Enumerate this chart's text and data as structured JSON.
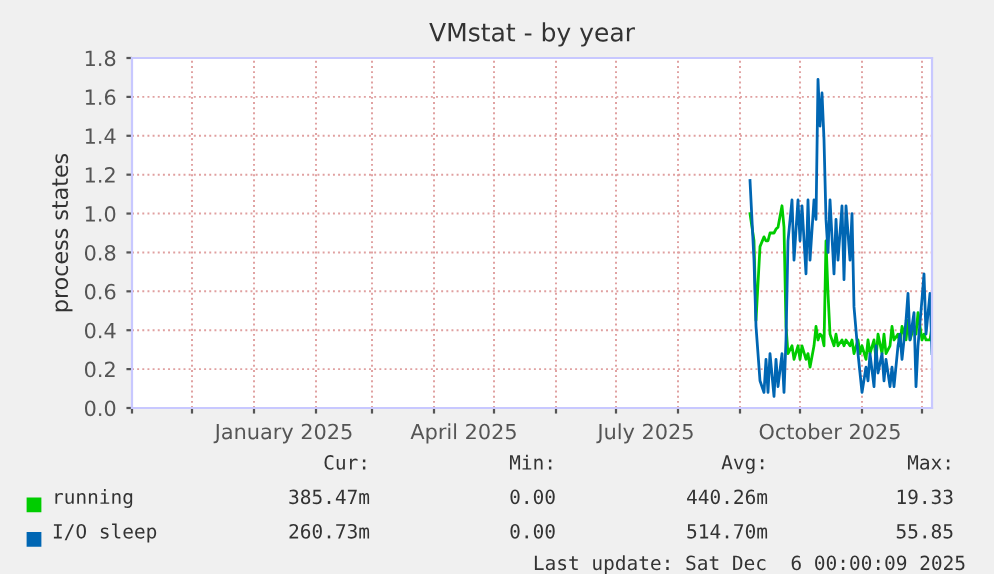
{
  "chart_data": {
    "type": "line",
    "title": "VMstat - by year",
    "ylabel": "process states",
    "xlim": [
      "2024-11-01",
      "2025-12-06"
    ],
    "ylim": [
      0,
      1.8
    ],
    "yticks": [
      {
        "value": 0,
        "label": "0.0"
      },
      0.2,
      0.4,
      0.6,
      0.8,
      {
        "value": 1,
        "label": "1.0"
      },
      1.2,
      1.4,
      1.6,
      1.8
    ],
    "xticks": [
      {
        "value": "2024-11-01",
        "label": null
      },
      {
        "value": "2024-12-01",
        "label": null
      },
      {
        "value": "2025-01-01",
        "label": null
      },
      {
        "value": "2025-02-01",
        "label": null
      },
      {
        "value": "2025-03-01",
        "label": null
      },
      {
        "value": "2025-04-01",
        "label": null
      },
      {
        "value": "2025-05-01",
        "label": null
      },
      {
        "value": "2025-06-01",
        "label": null
      },
      {
        "value": "2025-07-01",
        "label": null
      },
      {
        "value": "2025-08-01",
        "label": null
      },
      {
        "value": "2025-09-01",
        "label": null
      },
      {
        "value": "2025-10-01",
        "label": null
      },
      {
        "value": "2025-11-01",
        "label": null
      },
      {
        "value": "2025-12-01",
        "label": null
      },
      {
        "value": "2025-01-16",
        "label": "January 2025"
      },
      {
        "value": "2025-04-16",
        "label": "April 2025"
      },
      {
        "value": "2025-07-16",
        "label": "July 2025"
      },
      {
        "value": "2025-10-16",
        "label": "October 2025"
      }
    ],
    "grid": true,
    "legend": "bottom",
    "marker": "none",
    "line_style": "solid",
    "x": [
      "2025-09-06",
      "2025-09-08",
      "2025-09-09",
      "2025-09-11",
      "2025-09-13",
      "2025-09-14",
      "2025-09-15",
      "2025-09-16",
      "2025-09-18",
      "2025-09-19",
      "2025-09-20",
      "2025-09-22",
      "2025-09-23",
      "2025-09-24",
      "2025-09-25",
      "2025-09-27",
      "2025-09-28",
      "2025-09-30",
      "2025-10-01",
      "2025-10-02",
      "2025-10-04",
      "2025-10-05",
      "2025-10-06",
      "2025-10-08",
      "2025-10-09",
      "2025-10-10",
      "2025-10-11",
      "2025-10-12",
      "2025-10-13",
      "2025-10-14",
      "2025-10-15",
      "2025-10-16",
      "2025-10-18",
      "2025-10-19",
      "2025-10-20",
      "2025-10-22",
      "2025-10-23",
      "2025-10-24",
      "2025-10-26",
      "2025-10-27",
      "2025-10-28",
      "2025-10-30",
      "2025-10-31",
      "2025-11-01",
      "2025-11-03",
      "2025-11-04",
      "2025-11-05",
      "2025-11-07",
      "2025-11-08",
      "2025-11-09",
      "2025-11-11",
      "2025-11-12",
      "2025-11-13",
      "2025-11-15",
      "2025-11-16",
      "2025-11-17",
      "2025-11-19",
      "2025-11-20",
      "2025-11-21",
      "2025-11-23",
      "2025-11-24",
      "2025-11-25",
      "2025-11-27",
      "2025-11-28",
      "2025-11-29",
      "2025-12-01",
      "2025-12-02",
      "2025-12-03",
      "2025-12-05",
      "2025-12-06"
    ],
    "series": [
      {
        "name": "running",
        "color": "#00cc00",
        "values": [
          1.0,
          0.86,
          0.45,
          0.83,
          0.88,
          0.86,
          0.86,
          0.9,
          0.9,
          0.92,
          0.93,
          1.04,
          0.93,
          0.42,
          0.28,
          0.32,
          0.25,
          0.32,
          0.25,
          0.32,
          0.25,
          0.28,
          0.21,
          0.32,
          0.42,
          0.35,
          0.38,
          0.37,
          0.32,
          0.86,
          0.59,
          0.38,
          0.32,
          0.38,
          0.32,
          0.35,
          0.32,
          0.35,
          0.32,
          0.35,
          0.28,
          0.35,
          0.28,
          0.32,
          0.25,
          0.35,
          0.28,
          0.35,
          0.25,
          0.38,
          0.28,
          0.38,
          0.28,
          0.32,
          0.42,
          0.35,
          0.38,
          0.32,
          0.42,
          0.35,
          0.45,
          0.35,
          0.42,
          0.38,
          0.49,
          0.35,
          0.38,
          0.35,
          0.35,
          0.42
        ]
      },
      {
        "name": "I/O sleep",
        "color": "#0066b3",
        "values": [
          1.17,
          0.76,
          0.42,
          0.14,
          0.08,
          0.25,
          0.08,
          0.28,
          0.06,
          0.25,
          0.11,
          0.28,
          0.08,
          0.35,
          0.86,
          1.07,
          0.76,
          1.07,
          0.86,
          1.04,
          0.69,
          1.07,
          0.76,
          1.07,
          0.97,
          1.69,
          1.45,
          1.62,
          1.38,
          0.97,
          0.8,
          1.07,
          0.69,
          0.97,
          0.76,
          1.04,
          0.66,
          1.04,
          0.76,
          1.0,
          0.52,
          0.28,
          0.18,
          0.08,
          0.21,
          0.14,
          0.28,
          0.11,
          0.32,
          0.18,
          0.28,
          0.14,
          0.25,
          0.11,
          0.21,
          0.11,
          0.32,
          0.38,
          0.25,
          0.45,
          0.59,
          0.35,
          0.49,
          0.11,
          0.32,
          0.56,
          0.69,
          0.38,
          0.59,
          0.28
        ]
      }
    ],
    "annotations": [
      "Cur:",
      "Min:",
      "Avg:",
      "Max:",
      "385.47m",
      "0.00",
      "440.26m",
      "19.33",
      "260.73m",
      "0.00",
      "514.70m",
      "55.85",
      "Last update: Sat Dec  6 00:00:09 2025"
    ]
  }
}
